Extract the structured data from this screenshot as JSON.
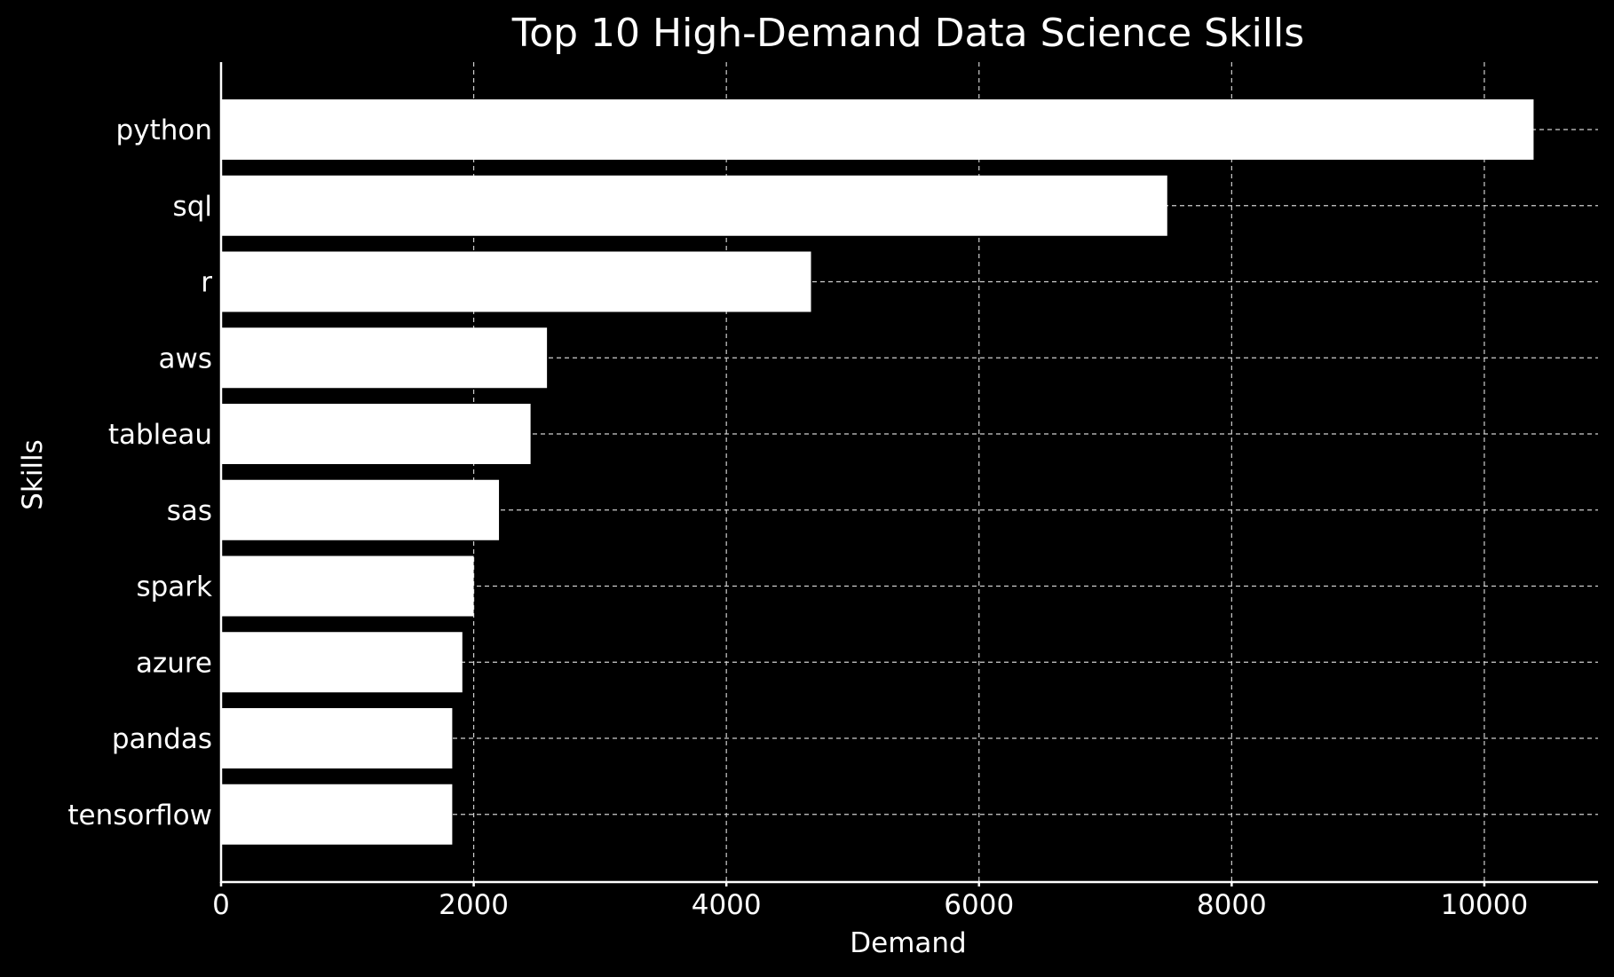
{
  "chart_data": {
    "type": "bar",
    "orientation": "horizontal",
    "title": "Top 10 High-Demand Data Science Skills",
    "xlabel": "Demand",
    "ylabel": "Skills",
    "categories": [
      "python",
      "sql",
      "r",
      "aws",
      "tableau",
      "sas",
      "spark",
      "azure",
      "pandas",
      "tensorflow"
    ],
    "values": [
      10390,
      7490,
      4670,
      2580,
      2450,
      2200,
      2000,
      1910,
      1830,
      1830
    ],
    "xlim": [
      0,
      10900
    ],
    "xticks": [
      0,
      2000,
      4000,
      6000,
      8000,
      10000
    ],
    "grid": true,
    "bar_color": "#ffffff",
    "background": "#000000"
  }
}
